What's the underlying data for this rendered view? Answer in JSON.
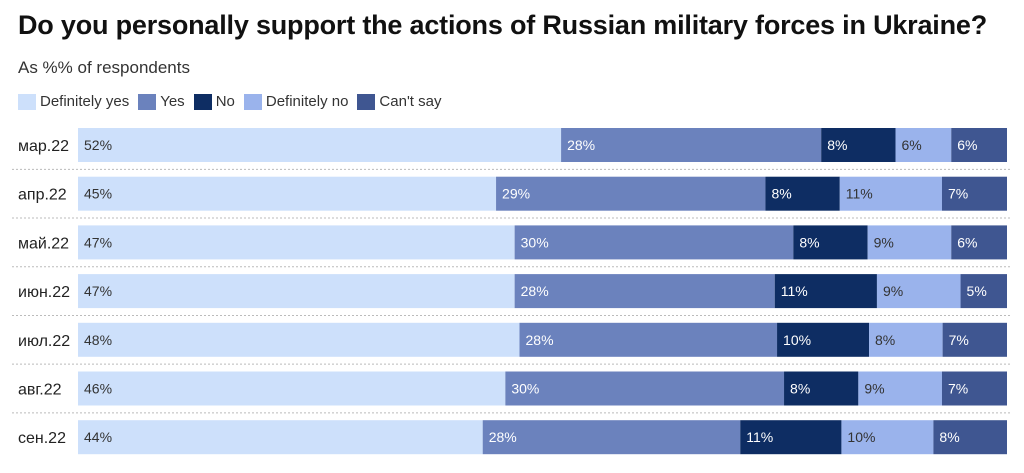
{
  "title": "Do you personally support the actions of Russian military forces in Ukraine?",
  "subtitle": "As %% of respondents",
  "colors": {
    "Definitely yes": "#cde0fb",
    "Yes": "#6b82bd",
    "No": "#0e2d63",
    "Definitely no": "#9ab3ec",
    "Can't say": "#3f5691"
  },
  "chart_data": {
    "type": "bar",
    "orientation": "horizontal",
    "stacked": true,
    "normalized": true,
    "categories": [
      "мар.22",
      "апр.22",
      "май.22",
      "июн.22",
      "июл.22",
      "авг.22",
      "сен.22"
    ],
    "series": [
      {
        "name": "Definitely yes",
        "values": [
          52,
          45,
          47,
          47,
          48,
          46,
          44
        ]
      },
      {
        "name": "Yes",
        "values": [
          28,
          29,
          30,
          28,
          28,
          30,
          28
        ]
      },
      {
        "name": "No",
        "values": [
          8,
          8,
          8,
          11,
          10,
          8,
          11
        ]
      },
      {
        "name": "Definitely no",
        "values": [
          6,
          11,
          9,
          9,
          8,
          9,
          10
        ]
      },
      {
        "name": "Can't say",
        "values": [
          6,
          7,
          6,
          5,
          7,
          7,
          8
        ]
      }
    ],
    "value_suffix": "%",
    "legend_position": "top-left",
    "grid": false
  }
}
